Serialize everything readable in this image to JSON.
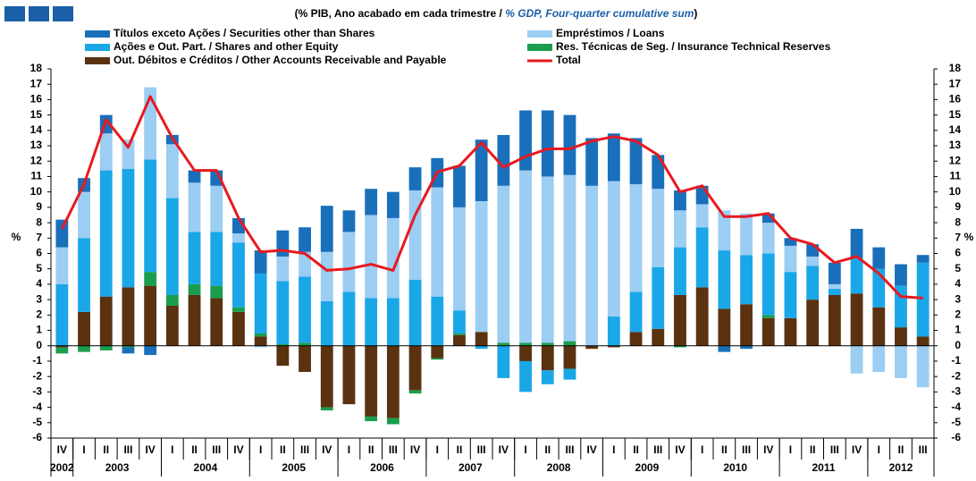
{
  "chart_data": {
    "type": "bar",
    "stacked": true,
    "title_parts": [
      "(% PIB, Ano acabado em cada trimestre / ",
      "% GDP, Four-quarter cumulative sum",
      ")"
    ],
    "ylabel": "%",
    "y2label": "%",
    "categories": [
      "IV",
      "I",
      "II",
      "III",
      "IV",
      "I",
      "II",
      "III",
      "IV",
      "I",
      "II",
      "III",
      "IV",
      "I",
      "II",
      "III",
      "IV",
      "I",
      "II",
      "III",
      "IV",
      "I",
      "II",
      "III",
      "IV",
      "I",
      "II",
      "III",
      "IV",
      "I",
      "II",
      "III",
      "IV",
      "I",
      "II",
      "III",
      "IV",
      "I",
      "II",
      "III"
    ],
    "years": [
      "2002",
      "2003",
      "2004",
      "2005",
      "2006",
      "2007",
      "2008",
      "2009",
      "2010",
      "2011",
      "2012"
    ],
    "ylim": [
      -6,
      18
    ],
    "yticks": [
      -6,
      -5,
      -4,
      -3,
      -2,
      -1,
      0,
      1,
      2,
      3,
      4,
      5,
      6,
      7,
      8,
      9,
      10,
      11,
      12,
      13,
      14,
      15,
      16,
      17,
      18
    ],
    "y2lim": [
      -6,
      18
    ],
    "y2ticks": [
      -6,
      -5,
      -4,
      -3,
      -2,
      -1,
      0,
      1,
      2,
      3,
      4,
      5,
      6,
      7,
      8,
      9,
      10,
      11,
      12,
      13,
      14,
      15,
      16,
      17,
      18
    ],
    "series": [
      {
        "name": "Out. Débitos e Créditos / Other Accounts Receivable and Payable",
        "color": "#5a3210",
        "values": [
          -0.1,
          2.2,
          3.2,
          3.8,
          3.9,
          2.6,
          3.3,
          3.1,
          2.2,
          0.6,
          -1.3,
          -1.7,
          -4.0,
          -3.8,
          -4.6,
          -4.7,
          -2.9,
          -0.8,
          0.7,
          0.9,
          0,
          -1.0,
          -1.6,
          -1.5,
          -0.2,
          -0.1,
          0.9,
          1.1,
          3.3,
          3.8,
          2.4,
          2.7,
          1.8,
          1.8,
          3.0,
          3.3,
          3.4,
          2.5,
          1.2,
          0.6
        ]
      },
      {
        "name": "Res. Técnicas de Seg. / Insurance Technical Reserves",
        "color": "#1a9e4e",
        "values": [
          -0.4,
          -0.4,
          -0.3,
          -0.1,
          0.9,
          0.7,
          0.7,
          0.8,
          0.3,
          0.2,
          0.1,
          0.2,
          -0.2,
          0,
          -0.3,
          -0.4,
          -0.2,
          -0.1,
          0.1,
          0,
          0.2,
          0.2,
          0.2,
          0.3,
          0,
          0,
          0,
          0,
          -0.1,
          0,
          0,
          0,
          0.2,
          0,
          0,
          0,
          0,
          0,
          0,
          0
        ]
      },
      {
        "name": "Ações e Out. Part. / Shares and other Equity",
        "color": "#1aa7e8",
        "values": [
          4.0,
          4.8,
          8.2,
          7.7,
          7.3,
          6.3,
          3.4,
          3.5,
          4.2,
          3.9,
          4.1,
          4.3,
          2.9,
          3.5,
          3.1,
          3.1,
          4.3,
          3.2,
          1.5,
          -0.2,
          -2.1,
          -2.0,
          -0.9,
          -0.7,
          0,
          1.9,
          2.6,
          4.0,
          3.1,
          3.9,
          3.8,
          3.2,
          4.0,
          3.0,
          2.2,
          0.4,
          2.3,
          2.5,
          2.7,
          4.8
        ]
      },
      {
        "name": "Empréstimos / Loans",
        "color": "#9ccdf3",
        "values": [
          2.4,
          3.0,
          2.4,
          1.9,
          4.7,
          3.5,
          3.2,
          3.0,
          0.6,
          -0.1,
          1.6,
          1.6,
          3.2,
          3.9,
          5.4,
          5.2,
          5.8,
          7.1,
          6.7,
          8.5,
          10.2,
          11.2,
          10.8,
          10.8,
          10.4,
          8.8,
          7.0,
          5.1,
          2.4,
          1.5,
          2.6,
          2.7,
          2.0,
          1.7,
          0.6,
          0.3,
          -1.8,
          -1.7,
          -2.1,
          -2.7
        ]
      },
      {
        "name": "Títulos exceto Ações / Securities other than Shares",
        "color": "#1a6fba",
        "values": [
          1.8,
          0.9,
          1.2,
          -0.4,
          -0.6,
          0.6,
          0.8,
          1.0,
          1.0,
          1.5,
          1.7,
          1.6,
          3.0,
          1.4,
          1.7,
          1.7,
          1.5,
          1.9,
          2.7,
          4.0,
          3.3,
          3.9,
          4.3,
          3.9,
          3.1,
          3.1,
          3.0,
          2.2,
          1.3,
          1.2,
          -0.4,
          -0.2,
          0.6,
          0.5,
          0.8,
          1.4,
          1.9,
          1.4,
          1.4,
          0.5
        ]
      },
      {
        "name": "Total",
        "type": "line",
        "color": "#e8191f",
        "values": [
          7.6,
          10.5,
          14.7,
          12.9,
          16.2,
          13.5,
          11.4,
          11.4,
          8.3,
          6.1,
          6.2,
          6.0,
          4.9,
          5.0,
          5.3,
          4.9,
          8.5,
          11.3,
          11.7,
          13.2,
          11.6,
          12.3,
          12.8,
          12.8,
          13.3,
          13.6,
          13.3,
          12.4,
          10.0,
          10.4,
          8.4,
          8.4,
          8.6,
          7.0,
          6.6,
          5.4,
          5.8,
          4.7,
          3.2,
          3.1
        ]
      }
    ],
    "legend_order": [
      4,
      3,
      2,
      1,
      0,
      5
    ]
  }
}
